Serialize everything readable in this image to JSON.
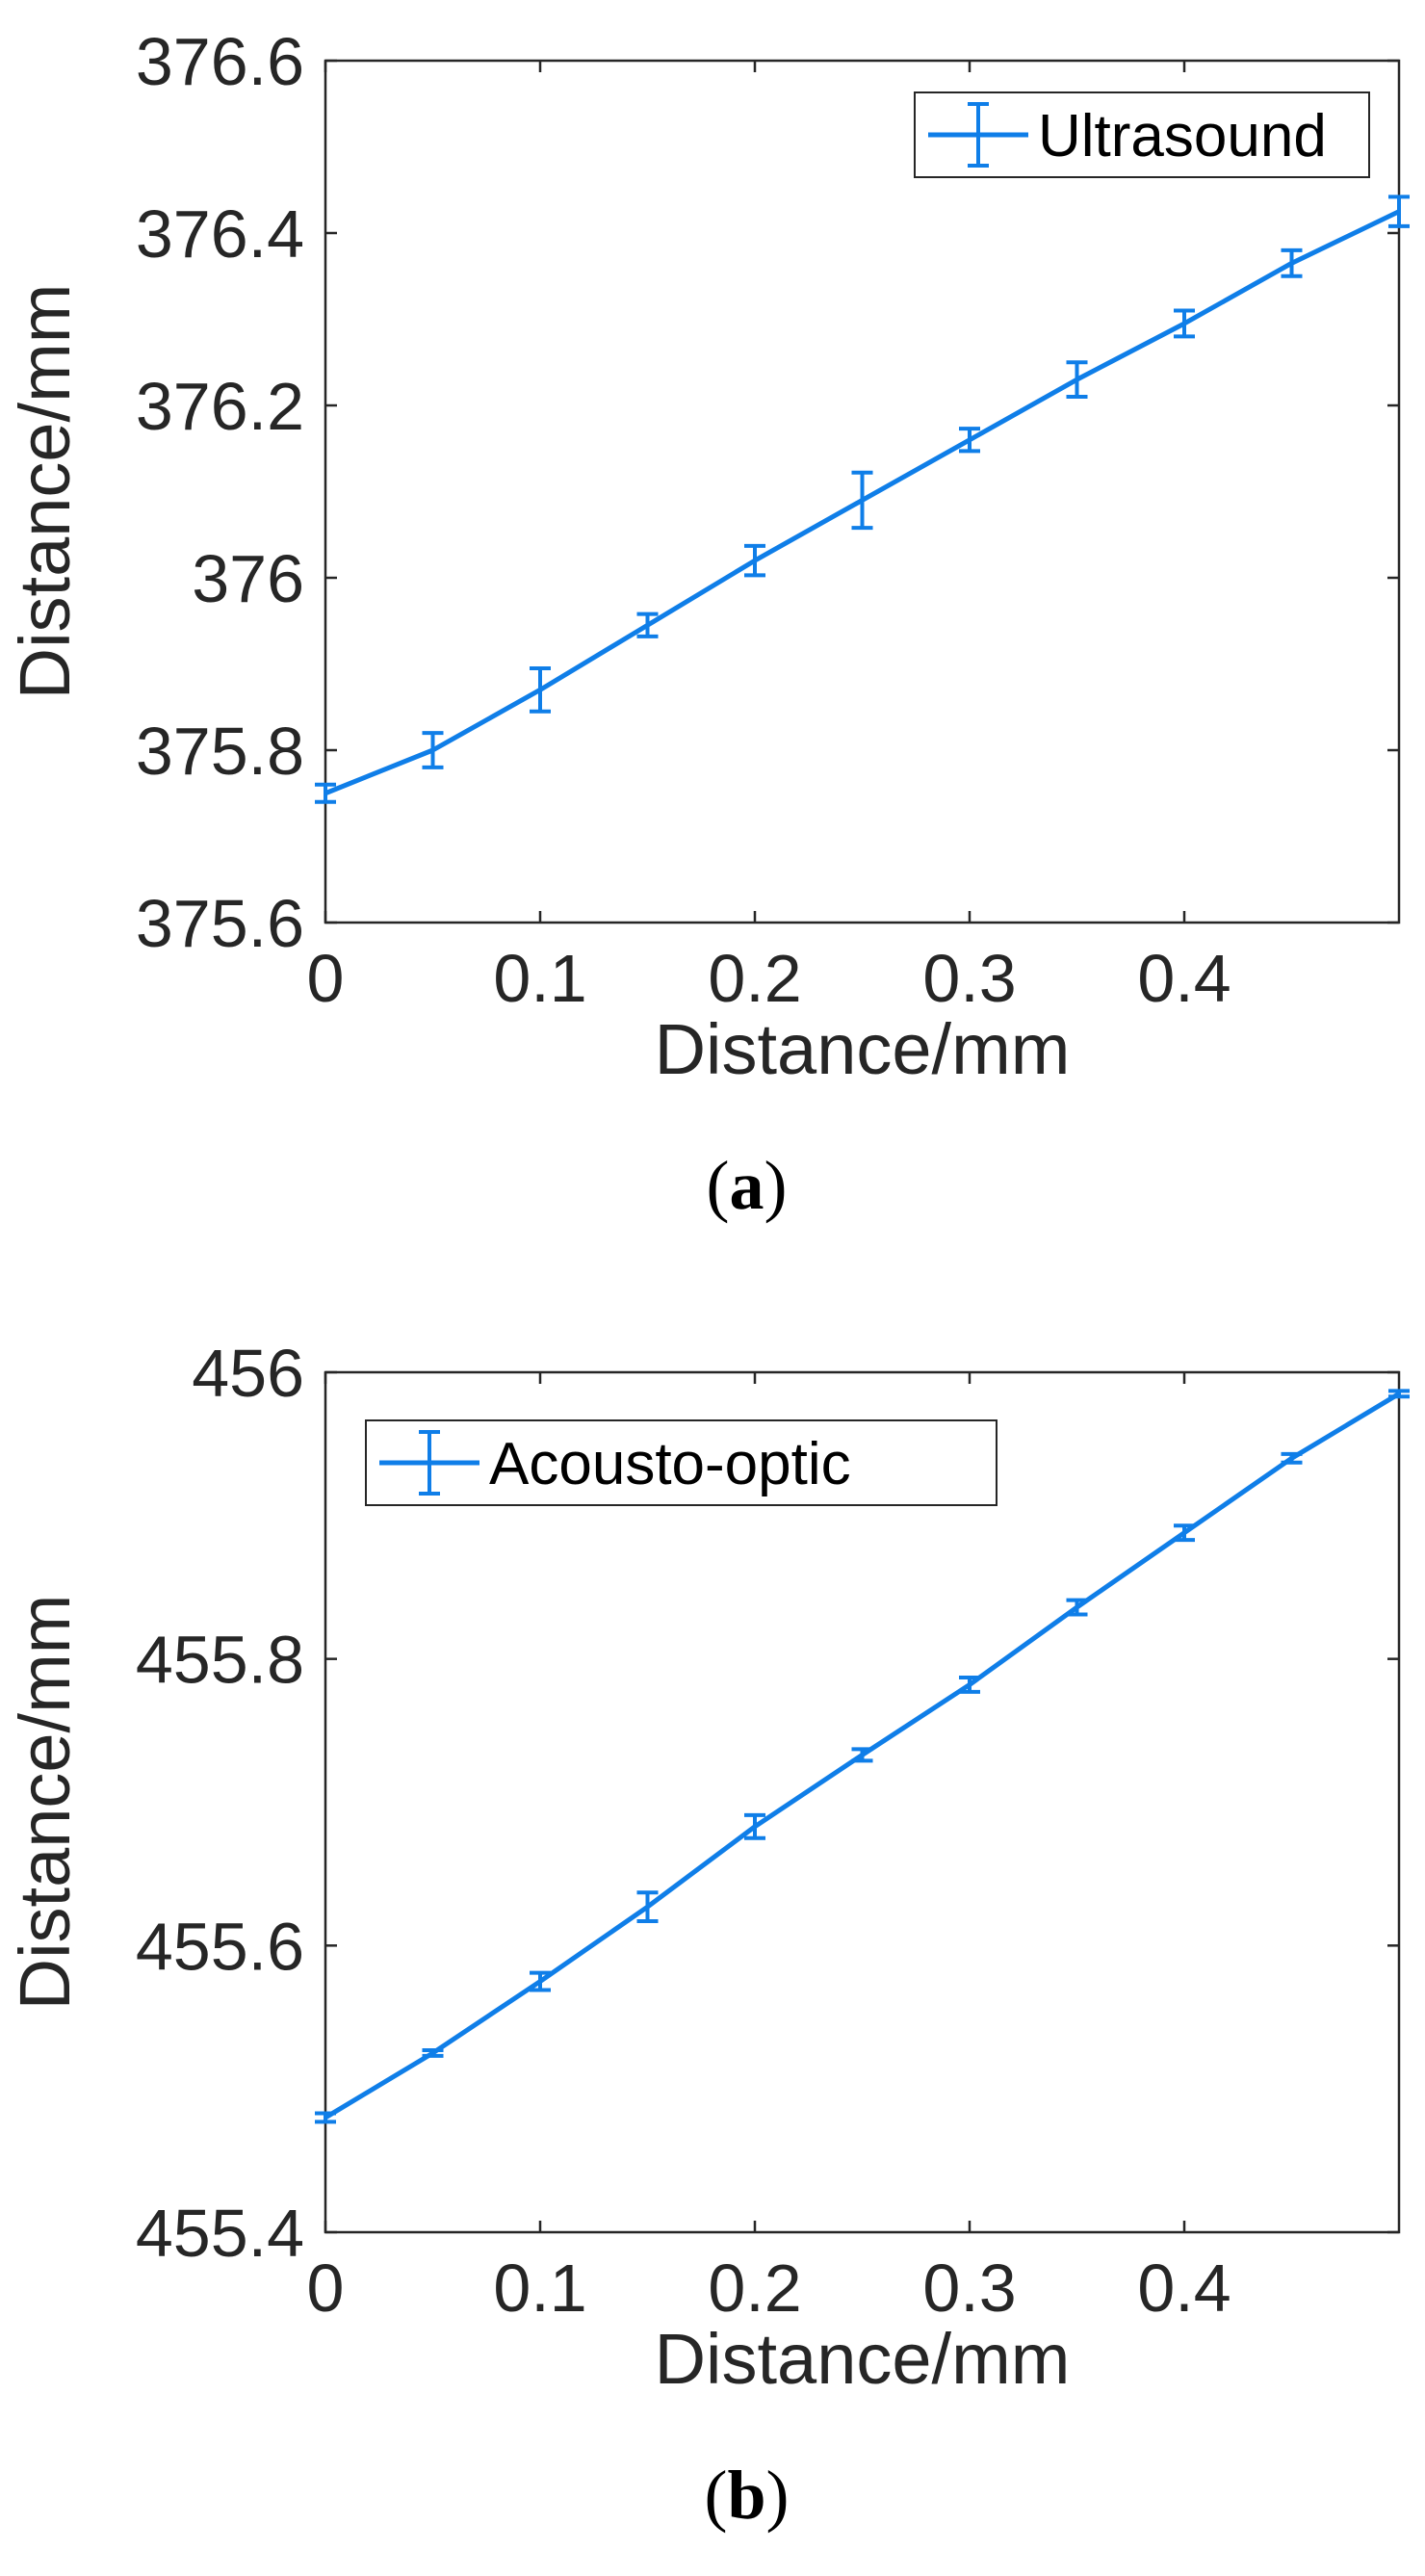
{
  "chart_data": [
    {
      "type": "line",
      "caption_label": "a",
      "xlabel": "Distance/mm",
      "ylabel": "Distance/mm",
      "xlim": [
        0,
        0.5
      ],
      "ylim": [
        375.6,
        376.6
      ],
      "xticks": [
        "0",
        "0.1",
        "0.2",
        "0.3",
        "0.4"
      ],
      "yticks": [
        "375.6",
        "375.8",
        "376",
        "376.2",
        "376.4",
        "376.6"
      ],
      "grid": false,
      "legend_position": "top-right",
      "series": [
        {
          "name": "Ultrasound",
          "color": "#0f7ee8",
          "x": [
            0,
            0.05,
            0.1,
            0.15,
            0.2,
            0.25,
            0.3,
            0.35,
            0.4,
            0.45,
            0.5
          ],
          "y": [
            375.75,
            375.8,
            375.87,
            375.945,
            376.02,
            376.09,
            376.16,
            376.23,
            376.295,
            376.365,
            376.425
          ],
          "error": [
            0.01,
            0.02,
            0.025,
            0.013,
            0.017,
            0.032,
            0.013,
            0.02,
            0.015,
            0.015,
            0.017
          ]
        }
      ]
    },
    {
      "type": "line",
      "caption_label": "b",
      "xlabel": "Distance/mm",
      "ylabel": "Distance/mm",
      "xlim": [
        0,
        0.5
      ],
      "ylim": [
        455.4,
        456
      ],
      "xticks": [
        "0",
        "0.1",
        "0.2",
        "0.3",
        "0.4"
      ],
      "yticks": [
        "455.4",
        "455.6",
        "455.8",
        "456"
      ],
      "grid": false,
      "legend_position": "top-left",
      "series": [
        {
          "name": "Acousto-optic",
          "color": "#0f7ee8",
          "x": [
            0,
            0.05,
            0.1,
            0.15,
            0.2,
            0.25,
            0.3,
            0.35,
            0.4,
            0.45,
            0.5
          ],
          "y": [
            455.48,
            455.525,
            455.575,
            455.627,
            455.683,
            455.733,
            455.782,
            455.836,
            455.888,
            455.94,
            455.985
          ],
          "error": [
            0.003,
            0.002,
            0.006,
            0.01,
            0.008,
            0.004,
            0.005,
            0.005,
            0.005,
            0.003,
            0.002
          ]
        }
      ]
    }
  ]
}
